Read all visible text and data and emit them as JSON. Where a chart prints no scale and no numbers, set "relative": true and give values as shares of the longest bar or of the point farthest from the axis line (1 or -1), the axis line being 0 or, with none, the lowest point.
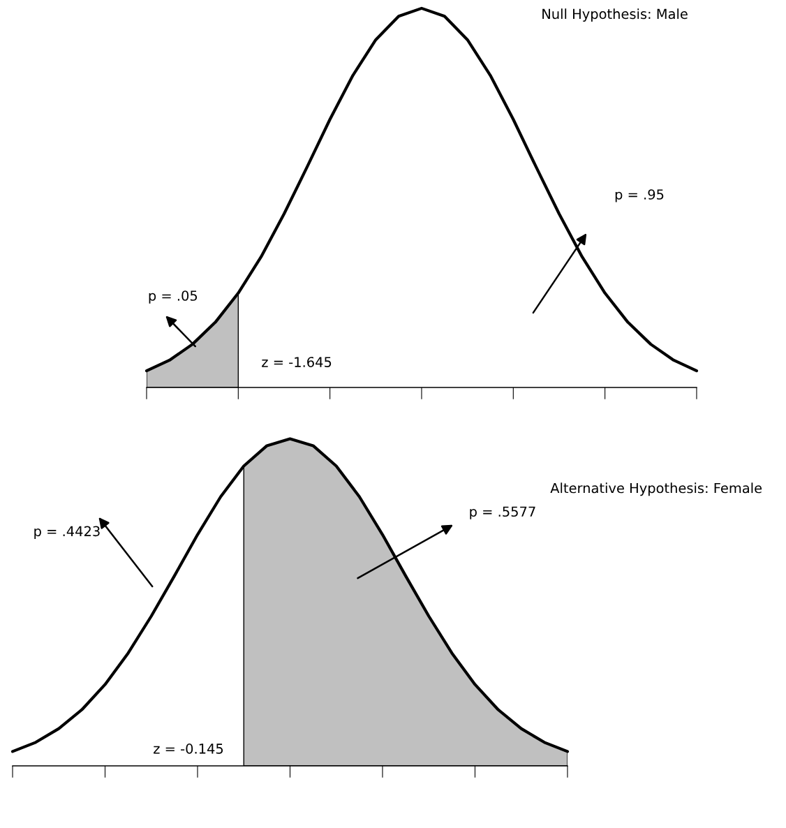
{
  "chart_data": [
    {
      "type": "line",
      "title": "Null Hypothesis: Male",
      "relative": true,
      "legend": false,
      "grid": false,
      "tick_labels": false,
      "categories": [
        null,
        null,
        null,
        null,
        null,
        null,
        null,
        null,
        null,
        null,
        null,
        null,
        null,
        null,
        null,
        null,
        null,
        null,
        null,
        null,
        null,
        null,
        null,
        null,
        null
      ],
      "series": [
        {
          "type": "area",
          "color": "#c0c0c0",
          "values": [
            0.044,
            0.072,
            0.114,
            0.172,
            0.249,
            null,
            null,
            null,
            null,
            null,
            null,
            null,
            null,
            null,
            null,
            null,
            null,
            null,
            null,
            null,
            null,
            null,
            null,
            null,
            null
          ]
        },
        {
          "color": "#000000",
          "values": [
            0.044,
            0.072,
            0.114,
            0.172,
            0.249,
            0.345,
            0.458,
            0.581,
            0.707,
            0.823,
            0.917,
            0.979,
            1,
            0.979,
            0.917,
            0.823,
            0.707,
            0.581,
            0.458,
            0.345,
            0.249,
            0.172,
            0.114,
            0.072,
            0.044
          ]
        }
      ],
      "annotations": [
        "p = .05",
        "p = .95",
        "z = -1.645"
      ]
    },
    {
      "type": "line",
      "title": "Alternative Hypothesis: Female",
      "relative": true,
      "legend": false,
      "grid": false,
      "tick_labels": false,
      "categories": [
        null,
        null,
        null,
        null,
        null,
        null,
        null,
        null,
        null,
        null,
        null,
        null,
        null,
        null,
        null,
        null,
        null,
        null,
        null,
        null,
        null,
        null,
        null,
        null,
        null
      ],
      "series": [
        {
          "type": "area",
          "color": "#c0c0c0",
          "values": [
            null,
            null,
            null,
            null,
            null,
            null,
            null,
            null,
            null,
            null,
            0.917,
            0.979,
            1,
            0.979,
            0.917,
            0.823,
            0.707,
            0.581,
            0.458,
            0.345,
            0.249,
            0.172,
            0.114,
            0.072,
            0.044
          ]
        },
        {
          "color": "#000000",
          "values": [
            0.044,
            0.072,
            0.114,
            0.172,
            0.249,
            0.345,
            0.458,
            0.581,
            0.707,
            0.823,
            0.917,
            0.979,
            1,
            0.979,
            0.917,
            0.823,
            0.707,
            0.581,
            0.458,
            0.345,
            0.249,
            0.172,
            0.114,
            0.072,
            0.044
          ]
        }
      ],
      "annotations": [
        "p = .4423",
        "p = .5577",
        "z = -0.145"
      ]
    }
  ]
}
